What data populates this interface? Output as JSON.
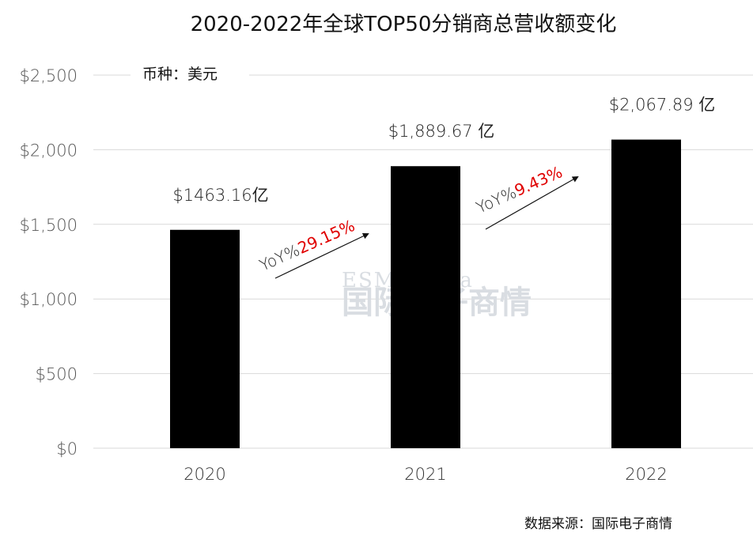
{
  "chart_data": {
    "type": "bar",
    "title": "2020-2022年全球TOP50分销商总营收额变化",
    "unit_note": "币种：美元",
    "categories": [
      "2020",
      "2021",
      "2022"
    ],
    "values": [
      1463.16,
      1889.67,
      2067.89
    ],
    "data_labels": [
      "$1463.16亿",
      "$1,889.67 亿",
      "$2,067.89 亿"
    ],
    "ylim": [
      0,
      2500
    ],
    "yticks": [
      0,
      500,
      1000,
      1500,
      2000,
      2500
    ],
    "ytick_labels": [
      "$0",
      "$500",
      "$1,000",
      "$1,500",
      "$2,000",
      "$2,500"
    ],
    "grid": true,
    "bar_color": "#000000",
    "grid_color": "#d9d9d9",
    "yoy_annotations": [
      {
        "prefix": "YoY%",
        "value": "29.15%",
        "from": "2020",
        "to": "2021"
      },
      {
        "prefix": "YoY%",
        "value": "9.43%",
        "from": "2021",
        "to": "2022"
      }
    ],
    "source": "数据来源：国际电子商情",
    "watermark": {
      "en": "ESM China",
      "zh": "国际电子商情"
    }
  }
}
